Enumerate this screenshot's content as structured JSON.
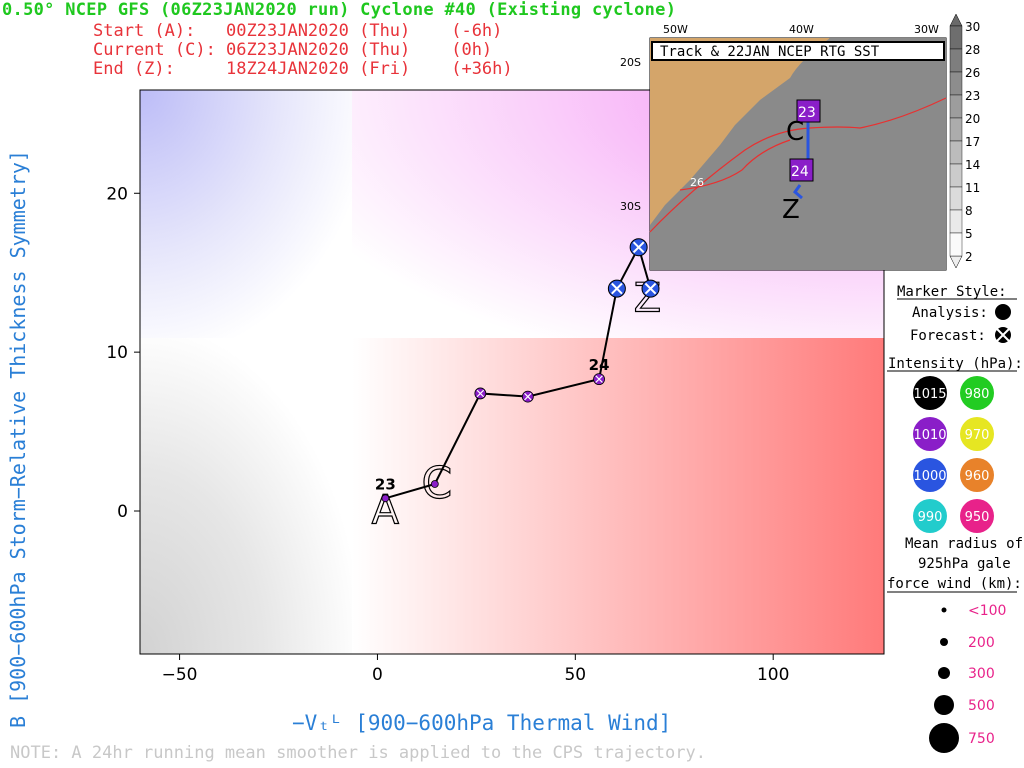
{
  "header": {
    "title": "0.50° NCEP GFS (06Z23JAN2020 run) Cyclone #40 (Existing cyclone)",
    "start": "Start (A):   00Z23JAN2020 (Thu)    (-6h)",
    "current": "Current (C): 06Z23JAN2020 (Thu)    (0h)",
    "end": "End (Z):     18Z24JAN2020 (Fri)    (+36h)"
  },
  "axes": {
    "ylabel": "B [900−600hPa Storm−Relative Thickness Symmetry]",
    "xlabel": "−Vₜᴸ [900−600hPa Thermal Wind]",
    "xticks": [
      "−50",
      "0",
      "50",
      "100"
    ],
    "yticks": [
      "0",
      "10",
      "20"
    ]
  },
  "chart_data": {
    "type": "scatter",
    "xlim": [
      -60,
      128
    ],
    "ylim": [
      -9,
      26.5
    ],
    "threshold_x": 0,
    "threshold_y": 10,
    "track": [
      {
        "x": 2,
        "y": 0.8,
        "kind": "analysis",
        "color": "#8a1ec8",
        "label": "23"
      },
      {
        "x": 14.5,
        "y": 1.7,
        "kind": "analysis",
        "color": "#8a1ec8"
      },
      {
        "x": 26,
        "y": 7.4,
        "kind": "forecast",
        "color": "#8a1ec8"
      },
      {
        "x": 38,
        "y": 7.2,
        "kind": "forecast",
        "color": "#8a1ec8"
      },
      {
        "x": 56,
        "y": 8.3,
        "kind": "forecast",
        "color": "#8a1ec8",
        "label": "24"
      },
      {
        "x": 60.5,
        "y": 14,
        "kind": "forecast",
        "color": "#2a55e0"
      },
      {
        "x": 66,
        "y": 16.6,
        "kind": "forecast",
        "color": "#2a55e0"
      },
      {
        "x": 69,
        "y": 14,
        "kind": "forecast",
        "color": "#2a55e0"
      }
    ],
    "markers": {
      "A": [
        2,
        0.8
      ],
      "C": [
        14.5,
        1.7
      ],
      "Z": [
        69,
        14
      ]
    }
  },
  "inset": {
    "title": "Track & 22JAN NCEP RTG SST",
    "lon_labels": [
      "50W",
      "40W",
      "30W"
    ],
    "lat_labels": [
      "20S",
      "30S"
    ],
    "sst_contour_label": "26",
    "day_labels": [
      "23",
      "24"
    ],
    "colorbar_ticks": [
      "30",
      "28",
      "26",
      "23",
      "20",
      "17",
      "14",
      "11",
      "8",
      "5",
      "2"
    ]
  },
  "legend": {
    "marker_style_title": "Marker Style:",
    "analysis": "Analysis:",
    "forecast": "Forecast:",
    "intensity_title": "Intensity (hPa):",
    "intensity": [
      {
        "value": "1015",
        "color": "#000000"
      },
      {
        "value": "980",
        "color": "#22cc22"
      },
      {
        "value": "1010",
        "color": "#8a1ec8"
      },
      {
        "value": "970",
        "color": "#e6e622"
      },
      {
        "value": "1000",
        "color": "#2a55e0"
      },
      {
        "value": "960",
        "color": "#e8822a"
      },
      {
        "value": "990",
        "color": "#22cccc"
      },
      {
        "value": "950",
        "color": "#e8228a"
      }
    ],
    "radius_title_1": "Mean radius of",
    "radius_title_2": "925hPa gale",
    "radius_title_3": "force wind (km):",
    "radius_sizes": [
      "<100",
      "200",
      "300",
      "500",
      "750"
    ]
  },
  "note": "NOTE:  A 24hr running mean smoother is applied to the CPS trajectory."
}
